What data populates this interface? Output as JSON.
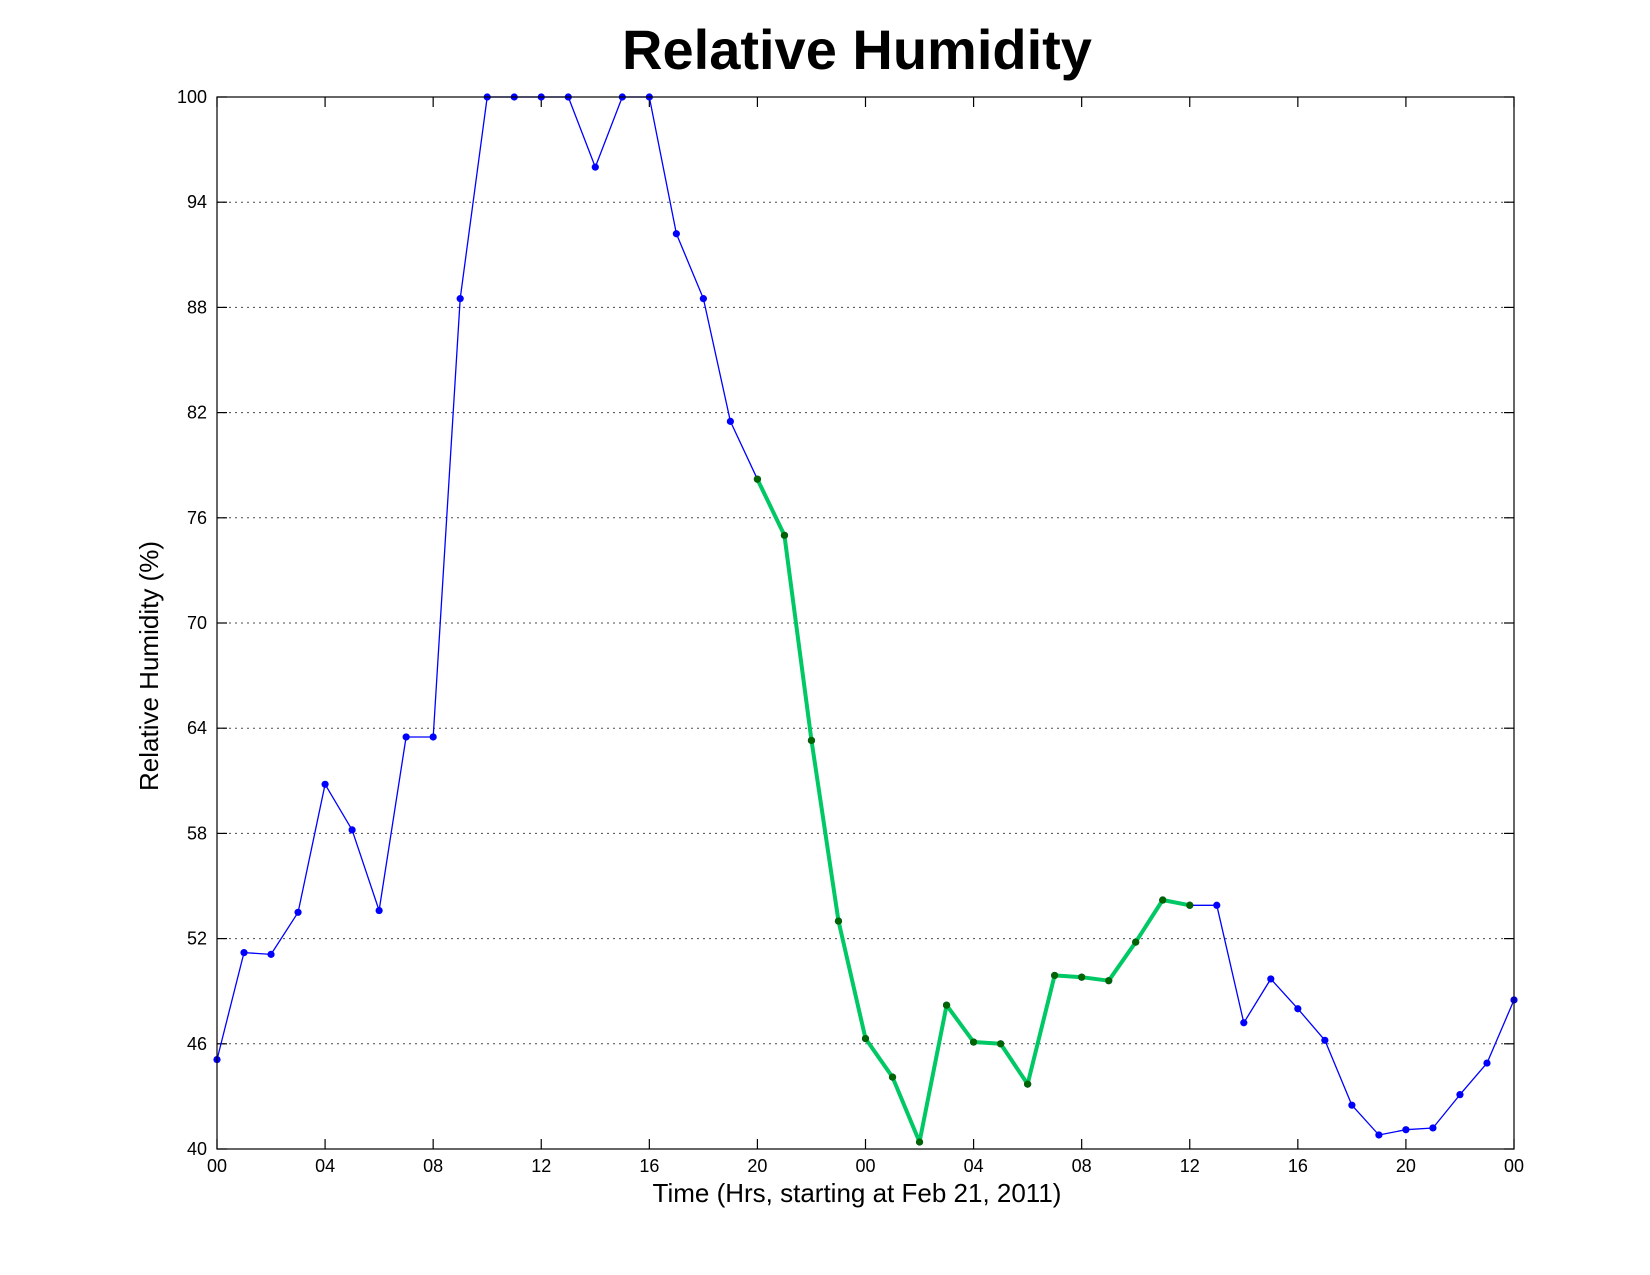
{
  "chart_data": {
    "type": "line",
    "title": "Relative Humidity",
    "xlabel": "Time (Hrs, starting at Feb 21, 2011)",
    "ylabel": "Relative Humidity (%)",
    "x_unit": "hours",
    "xlim": [
      0,
      48
    ],
    "ylim": [
      40,
      100
    ],
    "yticks": [
      40,
      46,
      52,
      58,
      64,
      70,
      76,
      82,
      88,
      94,
      100
    ],
    "xticks": [
      0,
      4,
      8,
      12,
      16,
      20,
      24,
      28,
      32,
      36,
      40,
      44,
      48
    ],
    "xtick_labels": [
      "00",
      "04",
      "08",
      "12",
      "16",
      "20",
      "00",
      "04",
      "08",
      "12",
      "16",
      "20",
      "00"
    ],
    "grid": "horizontal-dotted",
    "series": [
      {
        "color": "#0000ff",
        "marker_color": "#0000ff",
        "x": [
          0,
          1,
          2,
          3,
          4,
          5,
          6,
          7,
          8,
          9,
          10,
          11,
          12,
          13,
          14,
          15,
          16,
          17,
          18,
          19,
          20,
          21,
          22,
          23,
          24,
          25,
          26,
          27,
          28,
          29,
          30,
          31,
          32,
          33,
          34,
          35,
          36,
          37,
          38,
          39,
          40,
          41,
          42,
          43,
          44,
          45,
          46,
          47,
          48
        ],
        "values": [
          45.1,
          51.2,
          51.1,
          53.5,
          60.8,
          58.2,
          53.6,
          63.5,
          63.5,
          88.5,
          100,
          100,
          100,
          100,
          96,
          100,
          100,
          92.2,
          88.5,
          81.5,
          78.2,
          75,
          63.3,
          53,
          46.3,
          44.1,
          40.4,
          48.2,
          46.1,
          46,
          43.7,
          49.9,
          49.8,
          49.6,
          51.8,
          54.2,
          53.9,
          53.9,
          47.2,
          49.7,
          48,
          46.2,
          42.5,
          40.8,
          41.1,
          41.2,
          43.1,
          44.9,
          48.5
        ]
      },
      {
        "color": "#00c864",
        "marker_color": "#006400",
        "x": [
          20,
          21,
          22,
          23,
          24,
          25,
          26,
          27,
          28,
          29,
          30,
          31,
          32,
          33,
          34,
          35,
          36
        ],
        "values": [
          78.2,
          75,
          63.3,
          53,
          46.3,
          44.1,
          40.4,
          48.2,
          46.1,
          46,
          43.7,
          49.9,
          49.8,
          49.6,
          51.8,
          54.2,
          53.9
        ]
      }
    ]
  }
}
